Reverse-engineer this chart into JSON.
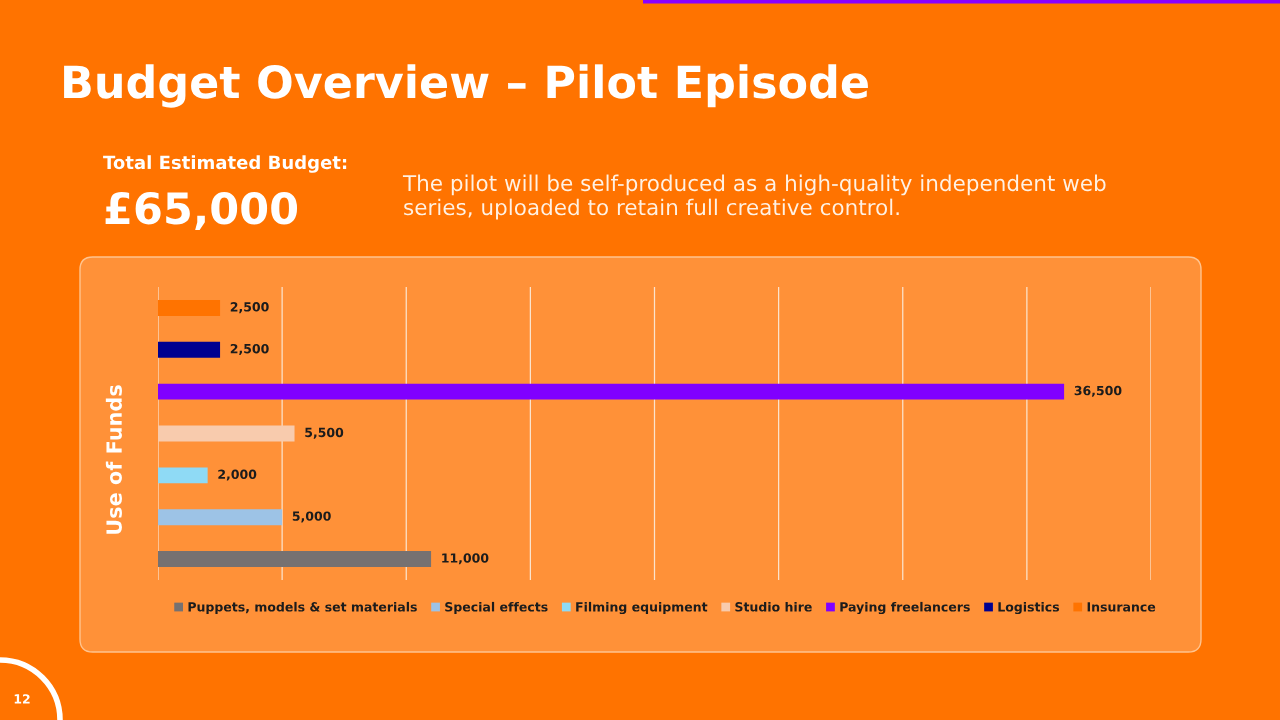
{
  "chart_data": {
    "type": "bar",
    "orientation": "horizontal",
    "stacked": true,
    "title": "Budget Overview – Pilot Episode",
    "ylabel": "Use of Funds",
    "categories": [
      null,
      null,
      null,
      null,
      null,
      null,
      null
    ],
    "series": [
      {
        "name": "Puppets, models & set materials",
        "color": "#767171",
        "values": [
          null,
          null,
          null,
          null,
          null,
          null,
          11000
        ],
        "value_labels": [
          null,
          null,
          null,
          null,
          null,
          null,
          "11,000"
        ]
      },
      {
        "name": "Special effects",
        "color": "#9dc3e6",
        "values": [
          null,
          null,
          null,
          null,
          null,
          5000,
          null
        ],
        "value_labels": [
          null,
          null,
          null,
          null,
          null,
          "5,000",
          null
        ]
      },
      {
        "name": "Filming equipment",
        "color": "#8fdaf5",
        "values": [
          null,
          null,
          null,
          null,
          2000,
          null,
          null
        ],
        "value_labels": [
          null,
          null,
          null,
          null,
          "2,000",
          null,
          null
        ]
      },
      {
        "name": "Studio hire",
        "color": "#f8cbad",
        "values": [
          null,
          null,
          null,
          5500,
          null,
          null,
          null
        ],
        "value_labels": [
          null,
          null,
          null,
          "5,500",
          null,
          null,
          null
        ]
      },
      {
        "name": "Paying freelancers",
        "color": "#8000ff",
        "values": [
          null,
          null,
          36500,
          null,
          null,
          null,
          null
        ],
        "value_labels": [
          null,
          null,
          "36,500",
          null,
          null,
          null,
          null
        ]
      },
      {
        "name": "Logistics",
        "color": "#000090",
        "values": [
          null,
          2500,
          null,
          null,
          null,
          null,
          null
        ],
        "value_labels": [
          null,
          "2,500",
          null,
          null,
          null,
          null,
          null
        ]
      },
      {
        "name": "Insurance",
        "color": "#ff7300",
        "values": [
          2500,
          null,
          null,
          null,
          null,
          null,
          null
        ],
        "value_labels": [
          "2,500",
          null,
          null,
          null,
          null,
          null,
          null
        ]
      }
    ],
    "xlim": [
      0,
      40000
    ],
    "xticks": [
      {
        "value": 0,
        "label": null
      },
      {
        "value": 5000,
        "label": null
      },
      {
        "value": 10000,
        "label": null
      },
      {
        "value": 15000,
        "label": null
      },
      {
        "value": 20000,
        "label": null
      },
      {
        "value": 25000,
        "label": null
      },
      {
        "value": 30000,
        "label": null
      },
      {
        "value": 35000,
        "label": null
      },
      {
        "value": 40000,
        "label": null
      }
    ],
    "grid": "x",
    "legend": "bottom",
    "annotations": [
      "Total Estimated Budget:",
      "£65,000",
      "The pilot will be self-produced as a high-quality independent web\nseries, uploaded to retain full creative control.",
      "12"
    ]
  }
}
